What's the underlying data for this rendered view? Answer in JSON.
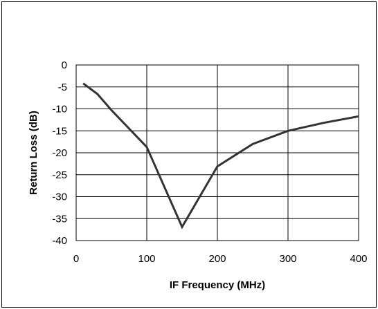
{
  "chart_data": {
    "type": "line",
    "title": "",
    "xlabel": "IF Frequency (MHz)",
    "ylabel": "Return Loss (dB)",
    "xlim": [
      0,
      400
    ],
    "ylim": [
      -40,
      0
    ],
    "xticks": [
      0,
      100,
      200,
      300,
      400
    ],
    "yticks": [
      0,
      -5,
      -10,
      -15,
      -20,
      -25,
      -30,
      -35,
      -40
    ],
    "grid": true,
    "legend": "none",
    "colors": {
      "line": "#333333",
      "grid": "#000000",
      "background": "#ffffff"
    },
    "series": [
      {
        "x": [
          10,
          30,
          50,
          100,
          150,
          200,
          250,
          300,
          350,
          400
        ],
        "y": [
          -4.2,
          -6.6,
          -10.3,
          -18.7,
          -36.9,
          -23.1,
          -18.0,
          -15.0,
          -13.2,
          -11.7
        ]
      }
    ]
  }
}
